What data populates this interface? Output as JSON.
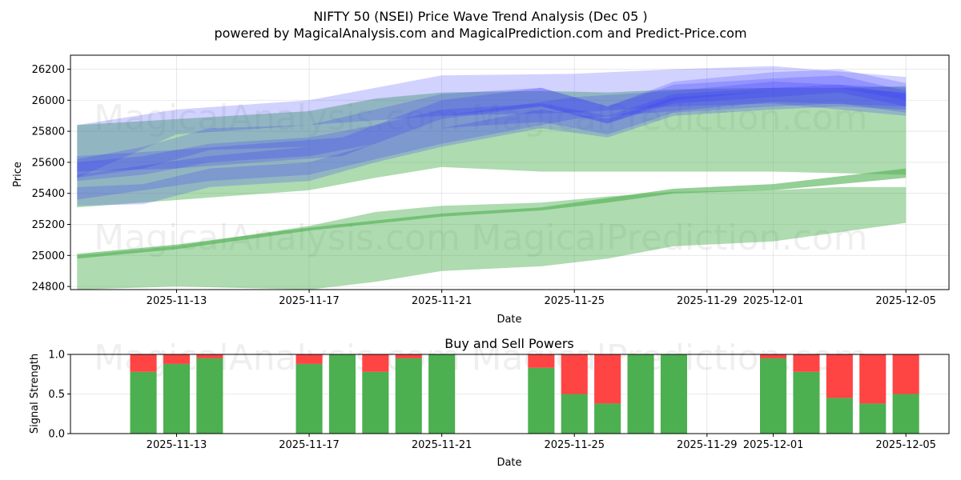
{
  "title": {
    "line1": "NIFTY 50 (NSEI) Price Wave Trend Analysis (Dec 05 )",
    "line2": "powered by MagicalAnalysis.com and MagicalPrediction.com and Predict-Price.com"
  },
  "watermarks": {
    "left": "MagicalAnalysis.com",
    "right": "MagicalPrediction.com"
  },
  "colors": {
    "buy": "#4CAF50",
    "sell": "#FF4444",
    "blue_band": "#3333FF",
    "green_band": "#4CAF50"
  },
  "chart_data": [
    {
      "type": "area",
      "title": "NIFTY 50 (NSEI) Price Wave Trend Analysis (Dec 05 )",
      "xlabel": "Date",
      "ylabel": "Price",
      "xlim": [
        "2025-11-09.8",
        "2025-12-06.3"
      ],
      "ylim": [
        24780,
        26290
      ],
      "x_ticks": [
        "2025-11-13",
        "2025-11-17",
        "2025-11-21",
        "2025-11-25",
        "2025-11-29",
        "2025-12-01",
        "2025-12-05"
      ],
      "y_ticks": [
        24800,
        25000,
        25200,
        25400,
        25600,
        25800,
        26000,
        26200
      ],
      "grid": true,
      "blue_bands": [
        {
          "dates": [
            "2025-11-10",
            "2025-11-12",
            "2025-11-14",
            "2025-11-17",
            "2025-11-19",
            "2025-11-21",
            "2025-11-24",
            "2025-11-26",
            "2025-11-28",
            "2025-12-01",
            "2025-12-03",
            "2025-12-05"
          ],
          "low": [
            25480,
            25520,
            25600,
            25640,
            25720,
            25820,
            25860,
            25780,
            25920,
            25960,
            25980,
            25920
          ],
          "high": [
            25600,
            25640,
            25720,
            25760,
            25840,
            25940,
            25980,
            25900,
            26040,
            26080,
            26100,
            26040
          ]
        },
        {
          "dates": [
            "2025-11-10",
            "2025-11-12",
            "2025-11-14",
            "2025-11-17",
            "2025-11-19",
            "2025-11-21",
            "2025-11-24",
            "2025-11-26",
            "2025-11-28",
            "2025-12-01",
            "2025-12-03",
            "2025-12-05"
          ],
          "low": [
            25500,
            25560,
            25680,
            25700,
            25800,
            25900,
            25960,
            25850,
            25980,
            26020,
            26050,
            25960
          ],
          "high": [
            25620,
            25700,
            25820,
            25840,
            25940,
            26040,
            26080,
            25960,
            26100,
            26140,
            26160,
            26060
          ]
        },
        {
          "dates": [
            "2025-11-10",
            "2025-11-12",
            "2025-11-14",
            "2025-11-17",
            "2025-11-19",
            "2025-11-21",
            "2025-11-24",
            "2025-11-26",
            "2025-11-28",
            "2025-12-01",
            "2025-12-03",
            "2025-12-05"
          ],
          "low": [
            25320,
            25330,
            25440,
            25480,
            25600,
            25700,
            25820,
            25760,
            25900,
            25940,
            25960,
            25940
          ],
          "high": [
            25440,
            25460,
            25560,
            25600,
            25720,
            25820,
            25940,
            25880,
            26020,
            26060,
            26080,
            26050
          ]
        },
        {
          "dates": [
            "2025-11-10",
            "2025-11-13",
            "2025-11-17",
            "2025-11-21",
            "2025-11-25",
            "2025-11-28",
            "2025-12-01",
            "2025-12-05"
          ],
          "low": [
            25500,
            25780,
            25840,
            25900,
            25920,
            25960,
            25980,
            25900
          ],
          "high": [
            25840,
            25940,
            26000,
            26160,
            26170,
            26200,
            26220,
            26150
          ]
        },
        {
          "dates": [
            "2025-11-10",
            "2025-11-13",
            "2025-11-18",
            "2025-11-21",
            "2025-11-24",
            "2025-11-26",
            "2025-11-28",
            "2025-12-01",
            "2025-12-03",
            "2025-12-05"
          ],
          "low": [
            25540,
            25560,
            25640,
            25880,
            25960,
            25850,
            26000,
            26060,
            26080,
            26000
          ],
          "high": [
            25640,
            25680,
            25760,
            26000,
            26080,
            25960,
            26120,
            26180,
            26200,
            26110
          ]
        },
        {
          "dates": [
            "2025-11-10",
            "2025-11-14",
            "2025-11-17",
            "2025-11-21",
            "2025-11-25",
            "2025-11-28",
            "2025-12-01",
            "2025-12-05"
          ],
          "low": [
            25360,
            25480,
            25520,
            25720,
            25880,
            25930,
            25990,
            25960
          ],
          "high": [
            25520,
            25640,
            25700,
            25900,
            26020,
            26060,
            26120,
            26080
          ]
        }
      ],
      "green_bands": [
        {
          "dates": [
            "2025-11-10",
            "2025-11-17",
            "2025-11-19",
            "2025-11-21",
            "2025-11-24",
            "2025-11-26",
            "2025-11-28",
            "2025-12-01",
            "2025-12-03",
            "2025-12-05"
          ],
          "low": [
            25310,
            25420,
            25500,
            25570,
            25540,
            25540,
            25540,
            25540,
            25530,
            25520
          ],
          "high": [
            25840,
            25930,
            26010,
            26050,
            26060,
            26050,
            26070,
            26080,
            26080,
            26090
          ]
        },
        {
          "dates": [
            "2025-11-10",
            "2025-11-13",
            "2025-11-17",
            "2025-11-19",
            "2025-11-21",
            "2025-11-24",
            "2025-11-26",
            "2025-11-28",
            "2025-12-01",
            "2025-12-03",
            "2025-12-05"
          ],
          "low": [
            24780,
            24800,
            24780,
            24830,
            24900,
            24930,
            24980,
            25060,
            25090,
            25150,
            25210
          ],
          "high": [
            25000,
            25060,
            25190,
            25280,
            25320,
            25340,
            25380,
            25410,
            25420,
            25440,
            25440
          ]
        },
        {
          "dates": [
            "2025-11-10",
            "2025-11-13",
            "2025-11-17",
            "2025-11-21",
            "2025-11-24",
            "2025-11-26",
            "2025-11-28",
            "2025-12-01",
            "2025-12-03",
            "2025-12-05"
          ],
          "low": [
            24980,
            25040,
            25160,
            25250,
            25290,
            25340,
            25400,
            25420,
            25460,
            25500
          ],
          "high": [
            25010,
            25070,
            25180,
            25270,
            25310,
            25370,
            25430,
            25460,
            25510,
            25560
          ]
        }
      ]
    },
    {
      "type": "bar",
      "title": "Buy and Sell Powers",
      "xlabel": "Date",
      "ylabel": "Signal Strength",
      "ylim": [
        0,
        1
      ],
      "y_ticks": [
        "0.0",
        "0.5",
        "1.0"
      ],
      "x_ticks": [
        "2025-11-13",
        "2025-11-17",
        "2025-11-21",
        "2025-11-25",
        "2025-11-29",
        "2025-12-01",
        "2025-12-05"
      ],
      "grid": true,
      "dates": [
        "2025-11-12",
        "2025-11-13",
        "2025-11-14",
        "2025-11-17",
        "2025-11-18",
        "2025-11-19",
        "2025-11-20",
        "2025-11-21",
        "2025-11-24",
        "2025-11-25",
        "2025-11-26",
        "2025-11-27",
        "2025-11-28",
        "2025-12-01",
        "2025-12-02",
        "2025-12-03",
        "2025-12-04",
        "2025-12-05"
      ],
      "buy": [
        0.78,
        0.88,
        0.95,
        0.88,
        1.0,
        0.78,
        0.95,
        1.0,
        0.83,
        0.5,
        0.38,
        1.0,
        1.0,
        0.95,
        0.78,
        0.45,
        0.38,
        0.5
      ],
      "sell": [
        0.22,
        0.12,
        0.05,
        0.12,
        0.0,
        0.22,
        0.05,
        0.0,
        0.17,
        0.5,
        0.62,
        0.0,
        0.0,
        0.05,
        0.22,
        0.55,
        0.62,
        0.5
      ]
    }
  ]
}
